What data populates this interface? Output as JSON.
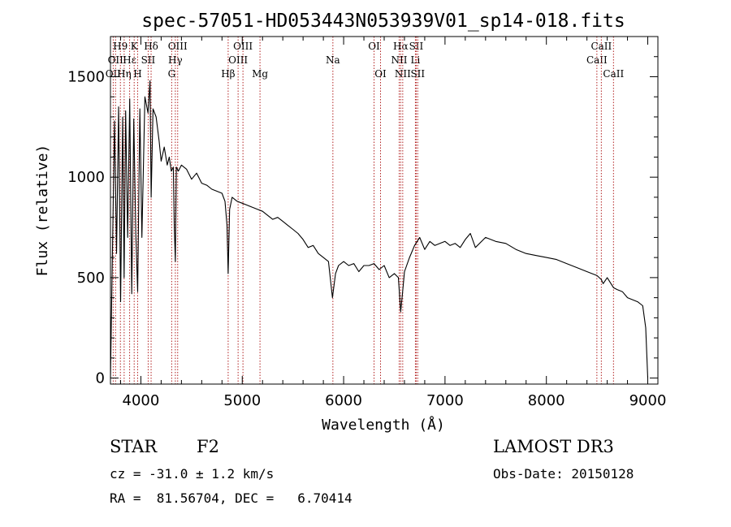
{
  "chart_data": {
    "type": "line",
    "title": "spec-57051-HD053443N053939V01_sp14-018.fits",
    "xlabel": "Wavelength (Å)",
    "ylabel": "Flux (relative)",
    "xlim": [
      3700,
      9100
    ],
    "ylim": [
      -30,
      1700
    ],
    "xticks": [
      4000,
      5000,
      6000,
      7000,
      8000,
      9000
    ],
    "yticks": [
      0,
      500,
      1000,
      1500
    ],
    "grid": false,
    "series": [
      {
        "x": [
          3700,
          3740,
          3760,
          3780,
          3800,
          3820,
          3835,
          3850,
          3870,
          3890,
          3910,
          3930,
          3950,
          3968,
          3990,
          4010,
          4040,
          4070,
          4090,
          4101,
          4120,
          4150,
          4180,
          4200,
          4230,
          4260,
          4280,
          4300,
          4320,
          4330,
          4340,
          4350,
          4370,
          4400,
          4450,
          4500,
          4550,
          4600,
          4650,
          4700,
          4750,
          4800,
          4830,
          4850,
          4861,
          4875,
          4900,
          4950,
          5000,
          5050,
          5100,
          5150,
          5200,
          5250,
          5300,
          5350,
          5400,
          5450,
          5500,
          5550,
          5600,
          5650,
          5700,
          5750,
          5800,
          5850,
          5890,
          5920,
          5950,
          6000,
          6050,
          6100,
          6150,
          6200,
          6250,
          6300,
          6350,
          6400,
          6450,
          6500,
          6540,
          6563,
          6580,
          6600,
          6650,
          6700,
          6750,
          6800,
          6850,
          6900,
          6950,
          7000,
          7050,
          7100,
          7150,
          7200,
          7250,
          7300,
          7400,
          7500,
          7600,
          7700,
          7800,
          7900,
          8000,
          8100,
          8200,
          8300,
          8400,
          8500,
          8542,
          8560,
          8600,
          8662,
          8700,
          8750,
          8800,
          8850,
          8900,
          8950,
          8980,
          9000
        ],
        "y": [
          0,
          1280,
          620,
          1350,
          380,
          1300,
          500,
          1330,
          700,
          1390,
          420,
          1290,
          720,
          430,
          1340,
          700,
          1400,
          1320,
          1480,
          900,
          1340,
          1300,
          1180,
          1080,
          1150,
          1060,
          1100,
          1030,
          1050,
          750,
          580,
          1050,
          1030,
          1060,
          1040,
          990,
          1020,
          970,
          960,
          940,
          930,
          920,
          880,
          760,
          520,
          840,
          900,
          880,
          870,
          860,
          850,
          840,
          830,
          810,
          790,
          800,
          780,
          760,
          740,
          720,
          690,
          650,
          660,
          620,
          600,
          580,
          400,
          520,
          560,
          580,
          560,
          570,
          530,
          560,
          560,
          570,
          540,
          560,
          500,
          520,
          500,
          330,
          420,
          530,
          600,
          660,
          700,
          640,
          680,
          660,
          670,
          680,
          660,
          670,
          650,
          690,
          720,
          650,
          700,
          680,
          670,
          640,
          620,
          610,
          600,
          590,
          570,
          550,
          530,
          510,
          490,
          470,
          500,
          450,
          440,
          430,
          400,
          390,
          380,
          360,
          250,
          0
        ]
      }
    ],
    "spectral_lines": [
      {
        "x": 3727,
        "label": "OII",
        "row": 2
      },
      {
        "x": 3750,
        "label": "OII",
        "row": 1
      },
      {
        "x": 3798,
        "label": "H9",
        "row": 0
      },
      {
        "x": 3835,
        "label": "Hη",
        "row": 2
      },
      {
        "x": 3889,
        "label": "Hε",
        "row": 1
      },
      {
        "x": 3934,
        "label": "K",
        "row": 0
      },
      {
        "x": 3968,
        "label": "H",
        "row": 2
      },
      {
        "x": 4072,
        "label": "SII",
        "row": 1
      },
      {
        "x": 4101,
        "label": "Hδ",
        "row": 0
      },
      {
        "x": 4304,
        "label": "G",
        "row": 2
      },
      {
        "x": 4340,
        "label": "Hγ",
        "row": 1
      },
      {
        "x": 4363,
        "label": "OIII",
        "row": 0
      },
      {
        "x": 4861,
        "label": "Hβ",
        "row": 2
      },
      {
        "x": 4959,
        "label": "OIII",
        "row": 1
      },
      {
        "x": 5007,
        "label": "OIII",
        "row": 0
      },
      {
        "x": 5175,
        "label": "Mg",
        "row": 2
      },
      {
        "x": 5894,
        "label": "Na",
        "row": 1
      },
      {
        "x": 6300,
        "label": "OI",
        "row": 0
      },
      {
        "x": 6364,
        "label": "OI",
        "row": 2
      },
      {
        "x": 6548,
        "label": "NII",
        "row": 1
      },
      {
        "x": 6563,
        "label": "Hα",
        "row": 0
      },
      {
        "x": 6583,
        "label": "NII",
        "row": 2
      },
      {
        "x": 6708,
        "label": "Li",
        "row": 1
      },
      {
        "x": 6716,
        "label": "SII",
        "row": 0
      },
      {
        "x": 6731,
        "label": "SII",
        "row": 2
      },
      {
        "x": 8498,
        "label": "CaII",
        "row": 1
      },
      {
        "x": 8542,
        "label": "CaII",
        "row": 0
      },
      {
        "x": 8662,
        "label": "CaII",
        "row": 2
      }
    ]
  },
  "info": {
    "class_label": "STAR",
    "subclass": "F2",
    "survey": "LAMOST DR3",
    "cz": "cz = -31.0 ± 1.2 km/s",
    "obs_date": "Obs-Date: 20150128",
    "radec": "RA =  81.56704, DEC =   6.70414"
  },
  "colors": {
    "spectrum": "#000000",
    "line_marker": "#b22222",
    "axes": "#000000"
  }
}
